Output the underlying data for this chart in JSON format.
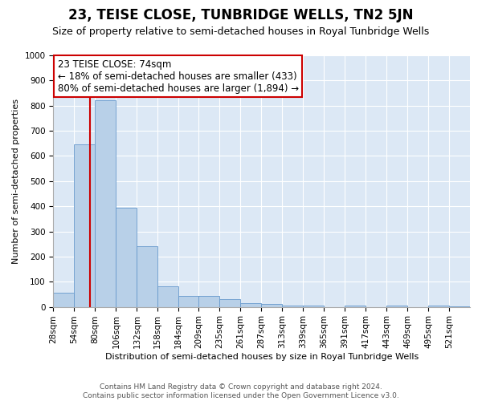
{
  "title": "23, TEISE CLOSE, TUNBRIDGE WELLS, TN2 5JN",
  "subtitle": "Size of property relative to semi-detached houses in Royal Tunbridge Wells",
  "xlabel": "Distribution of semi-detached houses by size in Royal Tunbridge Wells",
  "ylabel": "Number of semi-detached properties",
  "footer_line1": "Contains HM Land Registry data © Crown copyright and database right 2024.",
  "footer_line2": "Contains public sector information licensed under the Open Government Licence v3.0.",
  "annotation_line1": "23 TEISE CLOSE: 74sqm",
  "annotation_line2": "← 18% of semi-detached houses are smaller (433)",
  "annotation_line3": "80% of semi-detached houses are larger (1,894) →",
  "property_size": 74,
  "bin_edges": [
    28,
    54,
    80,
    106,
    132,
    158,
    184,
    209,
    235,
    261,
    287,
    313,
    339,
    365,
    391,
    417,
    443,
    469,
    495,
    521,
    547
  ],
  "bar_values": [
    55,
    645,
    820,
    395,
    240,
    83,
    42,
    42,
    30,
    15,
    10,
    5,
    5,
    0,
    5,
    0,
    5,
    0,
    5,
    3
  ],
  "bar_color": "#b8d0e8",
  "bar_edge_color": "#6699cc",
  "red_line_color": "#cc0000",
  "background_color": "#dce8f5",
  "grid_color": "#ffffff",
  "ylim": [
    0,
    1000
  ],
  "yticks": [
    0,
    100,
    200,
    300,
    400,
    500,
    600,
    700,
    800,
    900,
    1000
  ],
  "title_fontsize": 12,
  "subtitle_fontsize": 9,
  "ylabel_fontsize": 8,
  "xlabel_fontsize": 8,
  "tick_fontsize": 7.5,
  "footer_fontsize": 6.5
}
